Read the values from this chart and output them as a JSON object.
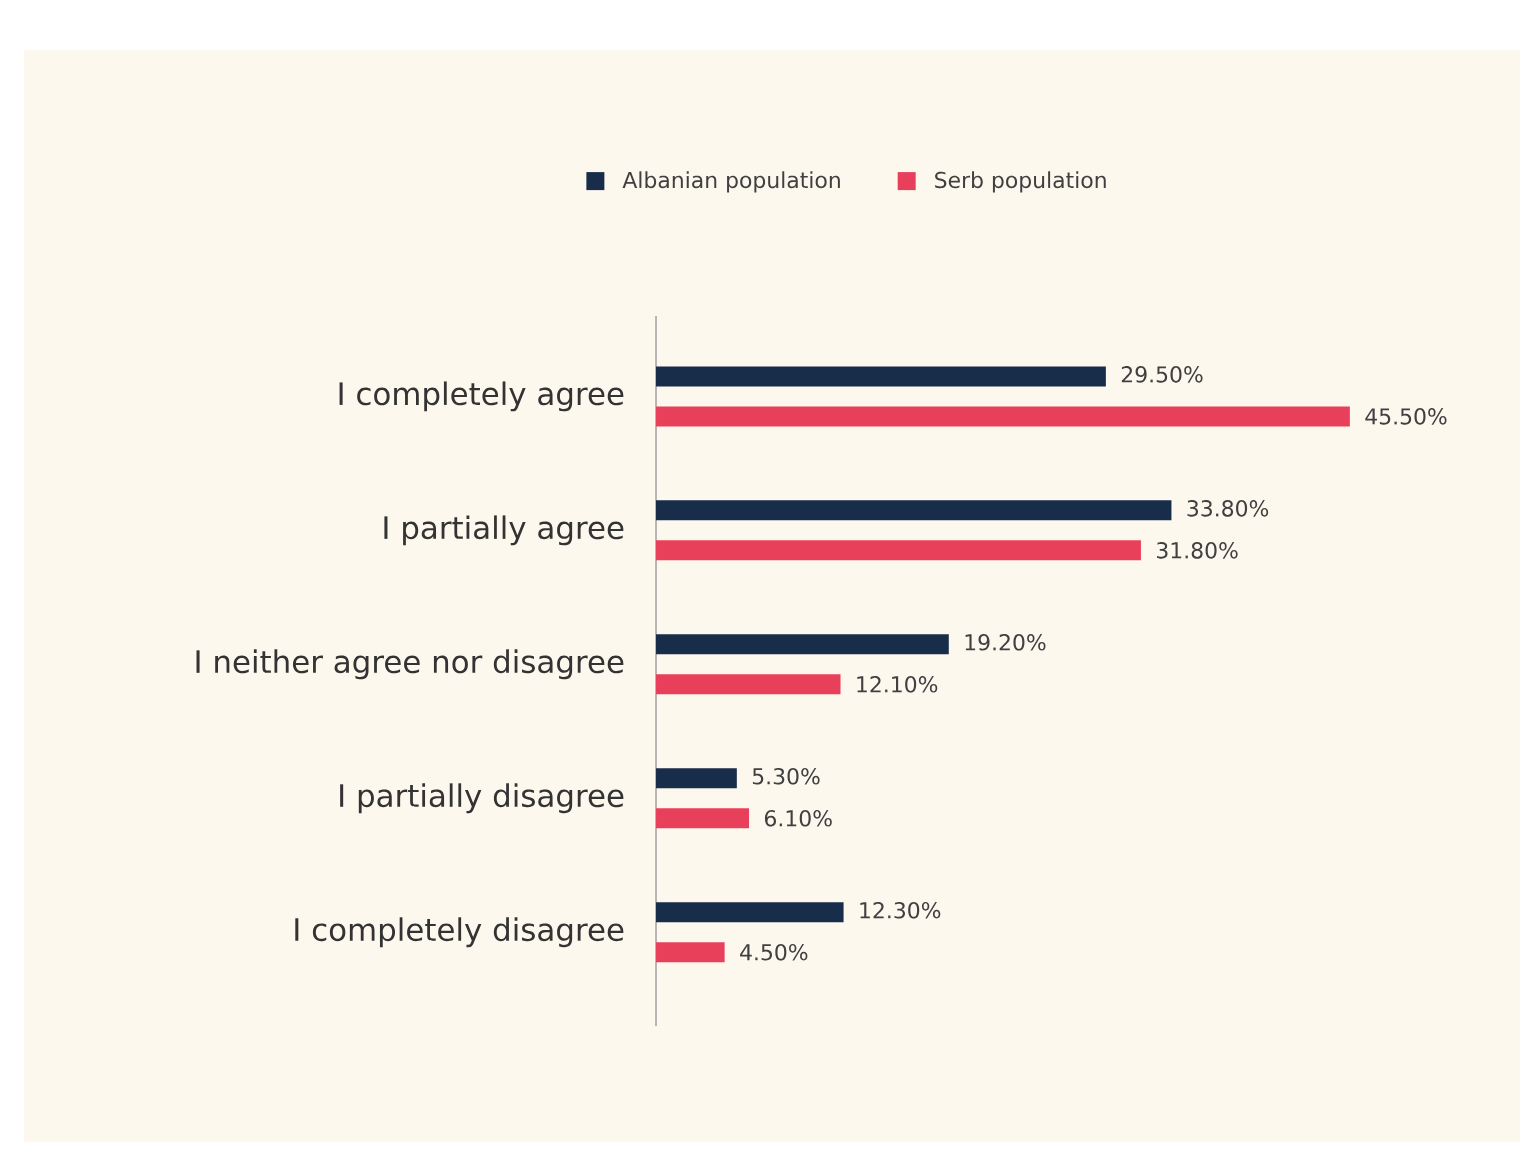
{
  "chart_data": {
    "type": "bar",
    "orientation": "horizontal",
    "categories": [
      "I completely agree",
      "I partially agree",
      "I neither agree nor disagree",
      "I partially disagree",
      "I completely disagree"
    ],
    "series": [
      {
        "name": "Albanian population",
        "color": "#172d4a",
        "values": [
          29.5,
          33.8,
          19.2,
          5.3,
          12.3
        ],
        "value_labels": [
          "29.50%",
          "33.80%",
          "19.20%",
          "5.30%",
          "12.30%"
        ]
      },
      {
        "name": "Serb population",
        "color": "#e8405a",
        "values": [
          45.5,
          31.8,
          12.1,
          6.1,
          4.5
        ],
        "value_labels": [
          "45.50%",
          "31.80%",
          "12.10%",
          "6.10%",
          "4.50%"
        ]
      }
    ],
    "legend": "top",
    "tick_labels": "y"
  }
}
